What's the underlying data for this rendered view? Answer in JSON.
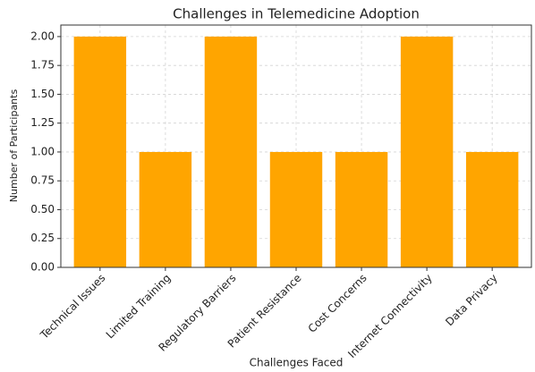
{
  "chart_data": {
    "type": "bar",
    "title": "Challenges in Telemedicine Adoption",
    "x_label": "Challenges Faced",
    "y_label": "Number of Participants",
    "categories": [
      "Technical Issues",
      "Limited Training",
      "Regulatory Barriers",
      "Patient Resistance",
      "Cost Concerns",
      "Internet Connectivity",
      "Data Privacy"
    ],
    "values": [
      2,
      1,
      2,
      1,
      1,
      2,
      1
    ],
    "color": "#ffa500",
    "ylim": [
      0,
      2.1
    ],
    "yticks": [
      {
        "value": 0,
        "label": "0.00"
      },
      {
        "value": 0.25,
        "label": "0.25"
      },
      {
        "value": 0.5,
        "label": "0.50"
      },
      {
        "value": 0.75,
        "label": "0.75"
      },
      {
        "value": 1,
        "label": "1.00"
      },
      {
        "value": 1.25,
        "label": "1.25"
      },
      {
        "value": 1.5,
        "label": "1.50"
      },
      {
        "value": 1.75,
        "label": "1.75"
      },
      {
        "value": 2,
        "label": "2.00"
      }
    ],
    "grid": true
  }
}
